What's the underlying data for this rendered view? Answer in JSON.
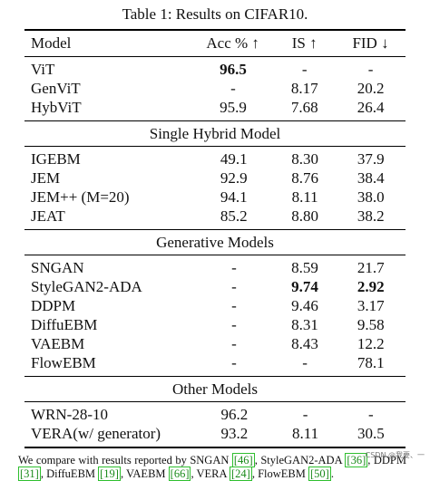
{
  "caption": "Table 1: Results on CIFAR10.",
  "header": [
    "Model",
    "Acc % ↑",
    "IS ↑",
    "FID ↓"
  ],
  "groups": [
    {
      "title": "",
      "rows": [
        {
          "model": "ViT",
          "acc": "96.5",
          "is": "-",
          "fid": "-",
          "bold": [
            "acc"
          ]
        },
        {
          "model": "GenViT",
          "acc": "-",
          "is": "8.17",
          "fid": "20.2",
          "bold": []
        },
        {
          "model": "HybViT",
          "acc": "95.9",
          "is": "7.68",
          "fid": "26.4",
          "bold": []
        }
      ]
    },
    {
      "title": "Single Hybrid Model",
      "rows": [
        {
          "model": "IGEBM",
          "acc": "49.1",
          "is": "8.30",
          "fid": "37.9",
          "bold": []
        },
        {
          "model": "JEM",
          "acc": "92.9",
          "is": "8.76",
          "fid": "38.4",
          "bold": []
        },
        {
          "model": "JEM++ (M=20)",
          "acc": "94.1",
          "is": "8.11",
          "fid": "38.0",
          "bold": []
        },
        {
          "model": "JEAT",
          "acc": "85.2",
          "is": "8.80",
          "fid": "38.2",
          "bold": []
        }
      ]
    },
    {
      "title": "Generative Models",
      "rows": [
        {
          "model": "SNGAN",
          "acc": "-",
          "is": "8.59",
          "fid": "21.7",
          "bold": []
        },
        {
          "model": "StyleGAN2-ADA",
          "acc": "-",
          "is": "9.74",
          "fid": "2.92",
          "bold": [
            "is",
            "fid"
          ]
        },
        {
          "model": "DDPM",
          "acc": "-",
          "is": "9.46",
          "fid": "3.17",
          "bold": []
        },
        {
          "model": "DiffuEBM",
          "acc": "-",
          "is": "8.31",
          "fid": "9.58",
          "bold": []
        },
        {
          "model": "VAEBM",
          "acc": "-",
          "is": "8.43",
          "fid": "12.2",
          "bold": []
        },
        {
          "model": "FlowEBM",
          "acc": "-",
          "is": "-",
          "fid": "78.1",
          "bold": []
        }
      ]
    },
    {
      "title": "Other Models",
      "rows": [
        {
          "model": "WRN-28-10",
          "acc": "96.2",
          "is": "-",
          "fid": "-",
          "bold": []
        },
        {
          "model": "VERA(w/ generator)",
          "acc": "93.2",
          "is": "8.11",
          "fid": "30.5",
          "bold": []
        }
      ]
    }
  ],
  "footnote": {
    "parts": [
      {
        "t": "We compare with results reported by SNGAN "
      },
      {
        "r": "[46]"
      },
      {
        "t": ", StyleGAN2-ADA "
      },
      {
        "r": "[36]"
      },
      {
        "t": ", DDPM "
      },
      {
        "r": "[31]"
      },
      {
        "t": ", DiffuEBM "
      },
      {
        "r": "[19]"
      },
      {
        "t": ", VAEBM "
      },
      {
        "r": "[66]"
      },
      {
        "t": ", VERA "
      },
      {
        "r": "[24]"
      },
      {
        "t": ", FlowEBM "
      },
      {
        "r": "[50]"
      },
      {
        "t": "."
      }
    ]
  },
  "watermark": "CSDN @我要、一"
}
